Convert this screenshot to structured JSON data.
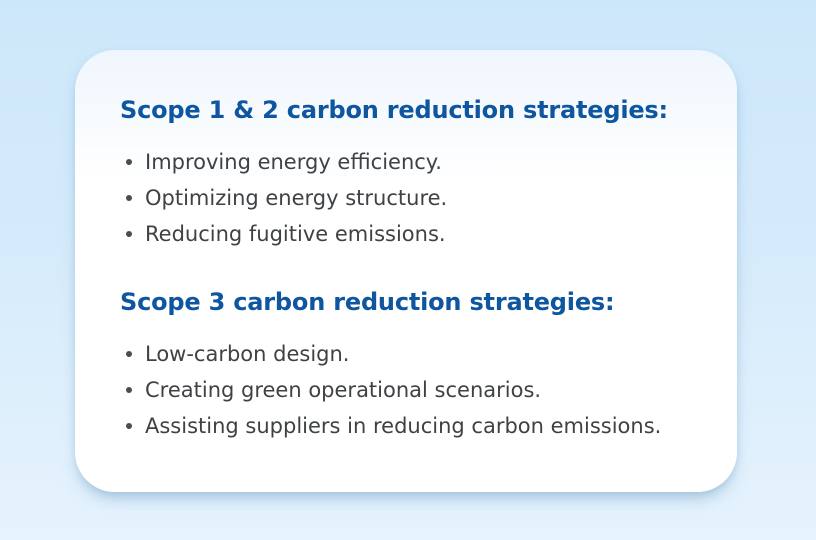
{
  "colors": {
    "background_top": "#cde7fa",
    "background_bottom": "#e6f3fd",
    "card_background": "#ffffff",
    "heading_blue": "#0f56a0",
    "body_text": "#3f4245"
  },
  "card": {
    "sections": [
      {
        "heading": "Scope 1 & 2 carbon reduction strategies:",
        "bullets": [
          "Improving energy efficiency.",
          "Optimizing energy structure.",
          "Reducing fugitive emissions."
        ]
      },
      {
        "heading": "Scope 3 carbon reduction strategies:",
        "bullets": [
          "Low-carbon design.",
          "Creating green operational scenarios.",
          "Assisting suppliers in reducing carbon emissions."
        ]
      }
    ]
  }
}
